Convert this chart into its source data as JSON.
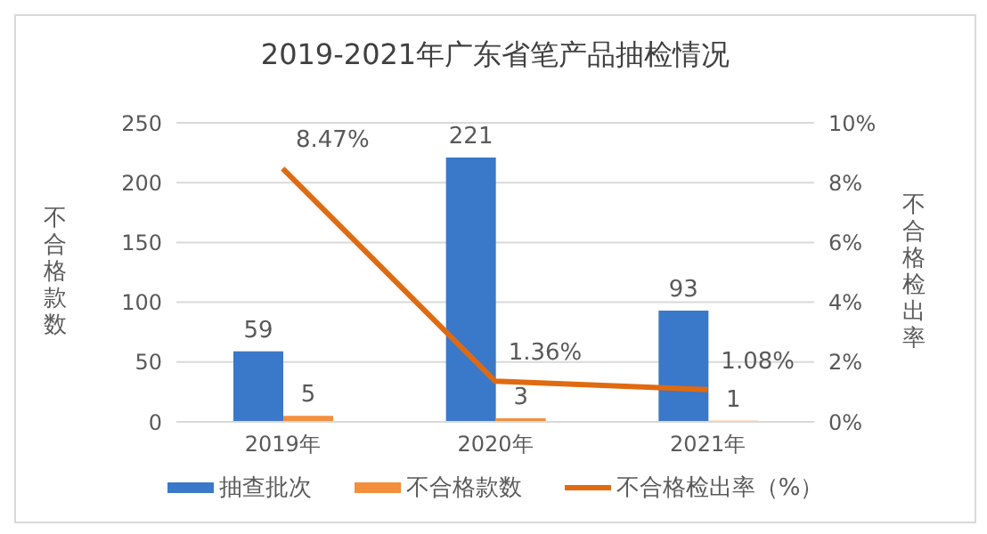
{
  "chart_data": {
    "type": "bar",
    "title": "2019-2021年广东省笔产品抽检情况",
    "ylabel": "不合格款数",
    "y2label": "不合格检出率",
    "categories": [
      "2019年",
      "2020年",
      "2021年"
    ],
    "series": [
      {
        "name": "抽查批次",
        "color": "#3a78c9",
        "values": [
          59,
          221,
          93
        ],
        "value_labels": [
          "59",
          "221",
          "93"
        ]
      },
      {
        "name": "不合格款数",
        "color": "#f28e3c",
        "values": [
          5,
          3,
          1
        ],
        "value_labels": [
          "5",
          "3",
          "1"
        ]
      },
      {
        "name": "不合格检出率（%）",
        "type": "line",
        "axis": "y2",
        "color": "#e06a10",
        "values": [
          8.47,
          1.36,
          1.08
        ],
        "value_labels": [
          "8.47%",
          "1.36%",
          "1.08%"
        ]
      }
    ],
    "ylim": [
      0,
      250
    ],
    "yticks": [
      0,
      50,
      100,
      150,
      200,
      250
    ],
    "y2lim": [
      0,
      10
    ],
    "y2ticks": [
      {
        "value": 0,
        "label": "0%"
      },
      {
        "value": 2,
        "label": "2%"
      },
      {
        "value": 4,
        "label": "4%"
      },
      {
        "value": 6,
        "label": "6%"
      },
      {
        "value": 8,
        "label": "8%"
      },
      {
        "value": 10,
        "label": "10%"
      }
    ],
    "grid": "y",
    "legend": "bottom",
    "marker": "none"
  }
}
